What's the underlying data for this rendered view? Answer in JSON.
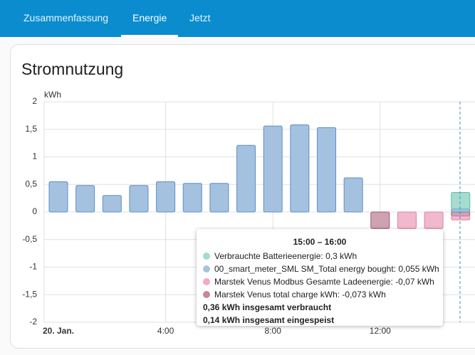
{
  "tabs": [
    "Zusammenfassung",
    "Energie",
    "Jetzt"
  ],
  "card": {
    "title": "Stromnutzung"
  },
  "chart_data": {
    "type": "bar",
    "stacked": true,
    "y_label": "kWh",
    "categories": [
      "20. Jan.",
      null,
      null,
      null,
      "4:00",
      null,
      null,
      null,
      "8:00",
      null,
      null,
      null,
      "12:00",
      null,
      null,
      null
    ],
    "series": [
      {
        "name": "Verbrauchte Batterieenergie",
        "color": "#5ebfa5",
        "values": [
          null,
          null,
          null,
          null,
          null,
          null,
          null,
          null,
          null,
          null,
          null,
          null,
          null,
          null,
          null,
          0.3
        ]
      },
      {
        "name": "00_smart_meter_SML SM_Total energy bought",
        "color": "#5b8fc7",
        "values": [
          0.55,
          0.48,
          0.3,
          0.48,
          0.55,
          0.52,
          0.52,
          1.21,
          1.56,
          1.58,
          1.53,
          0.62,
          null,
          null,
          null,
          0.055
        ]
      },
      {
        "name": "Marstek Venus Modbus Gesamte Ladeenergie",
        "color": "#e37fa4",
        "values": [
          null,
          null,
          null,
          null,
          null,
          null,
          null,
          null,
          null,
          null,
          null,
          null,
          null,
          -0.3,
          -0.3,
          -0.07
        ]
      },
      {
        "name": "Marstek Venus total charge kWh",
        "color": "#a5556f",
        "values": [
          null,
          null,
          null,
          null,
          null,
          null,
          null,
          null,
          null,
          null,
          null,
          null,
          -0.3,
          null,
          null,
          -0.073
        ]
      }
    ],
    "ylim": [
      -2,
      2
    ],
    "yticks": [
      2,
      {
        "value": 1.5,
        "label": "1,5"
      },
      1,
      {
        "value": 0.5,
        "label": "0,5"
      },
      0,
      {
        "value": -0.5,
        "label": "-0,5"
      },
      -1,
      {
        "value": -1.5,
        "label": "-1,5"
      },
      -2
    ],
    "grid": true
  },
  "tooltip": {
    "title": "15:00 – 16:00",
    "items": [
      "Verbrauchte Batterieenergie: 0,3 kWh",
      "00_smart_meter_SML SM_Total energy bought: 0,055 kWh",
      "Marstek Venus Modbus Gesamte Ladeenergie: -0,07 kWh",
      "Marstek Venus total charge kWh: -0,073 kWh"
    ],
    "totals": [
      "0,36 kWh insgesamt verbraucht",
      "0,14 kWh insgesamt eingespeist"
    ]
  }
}
